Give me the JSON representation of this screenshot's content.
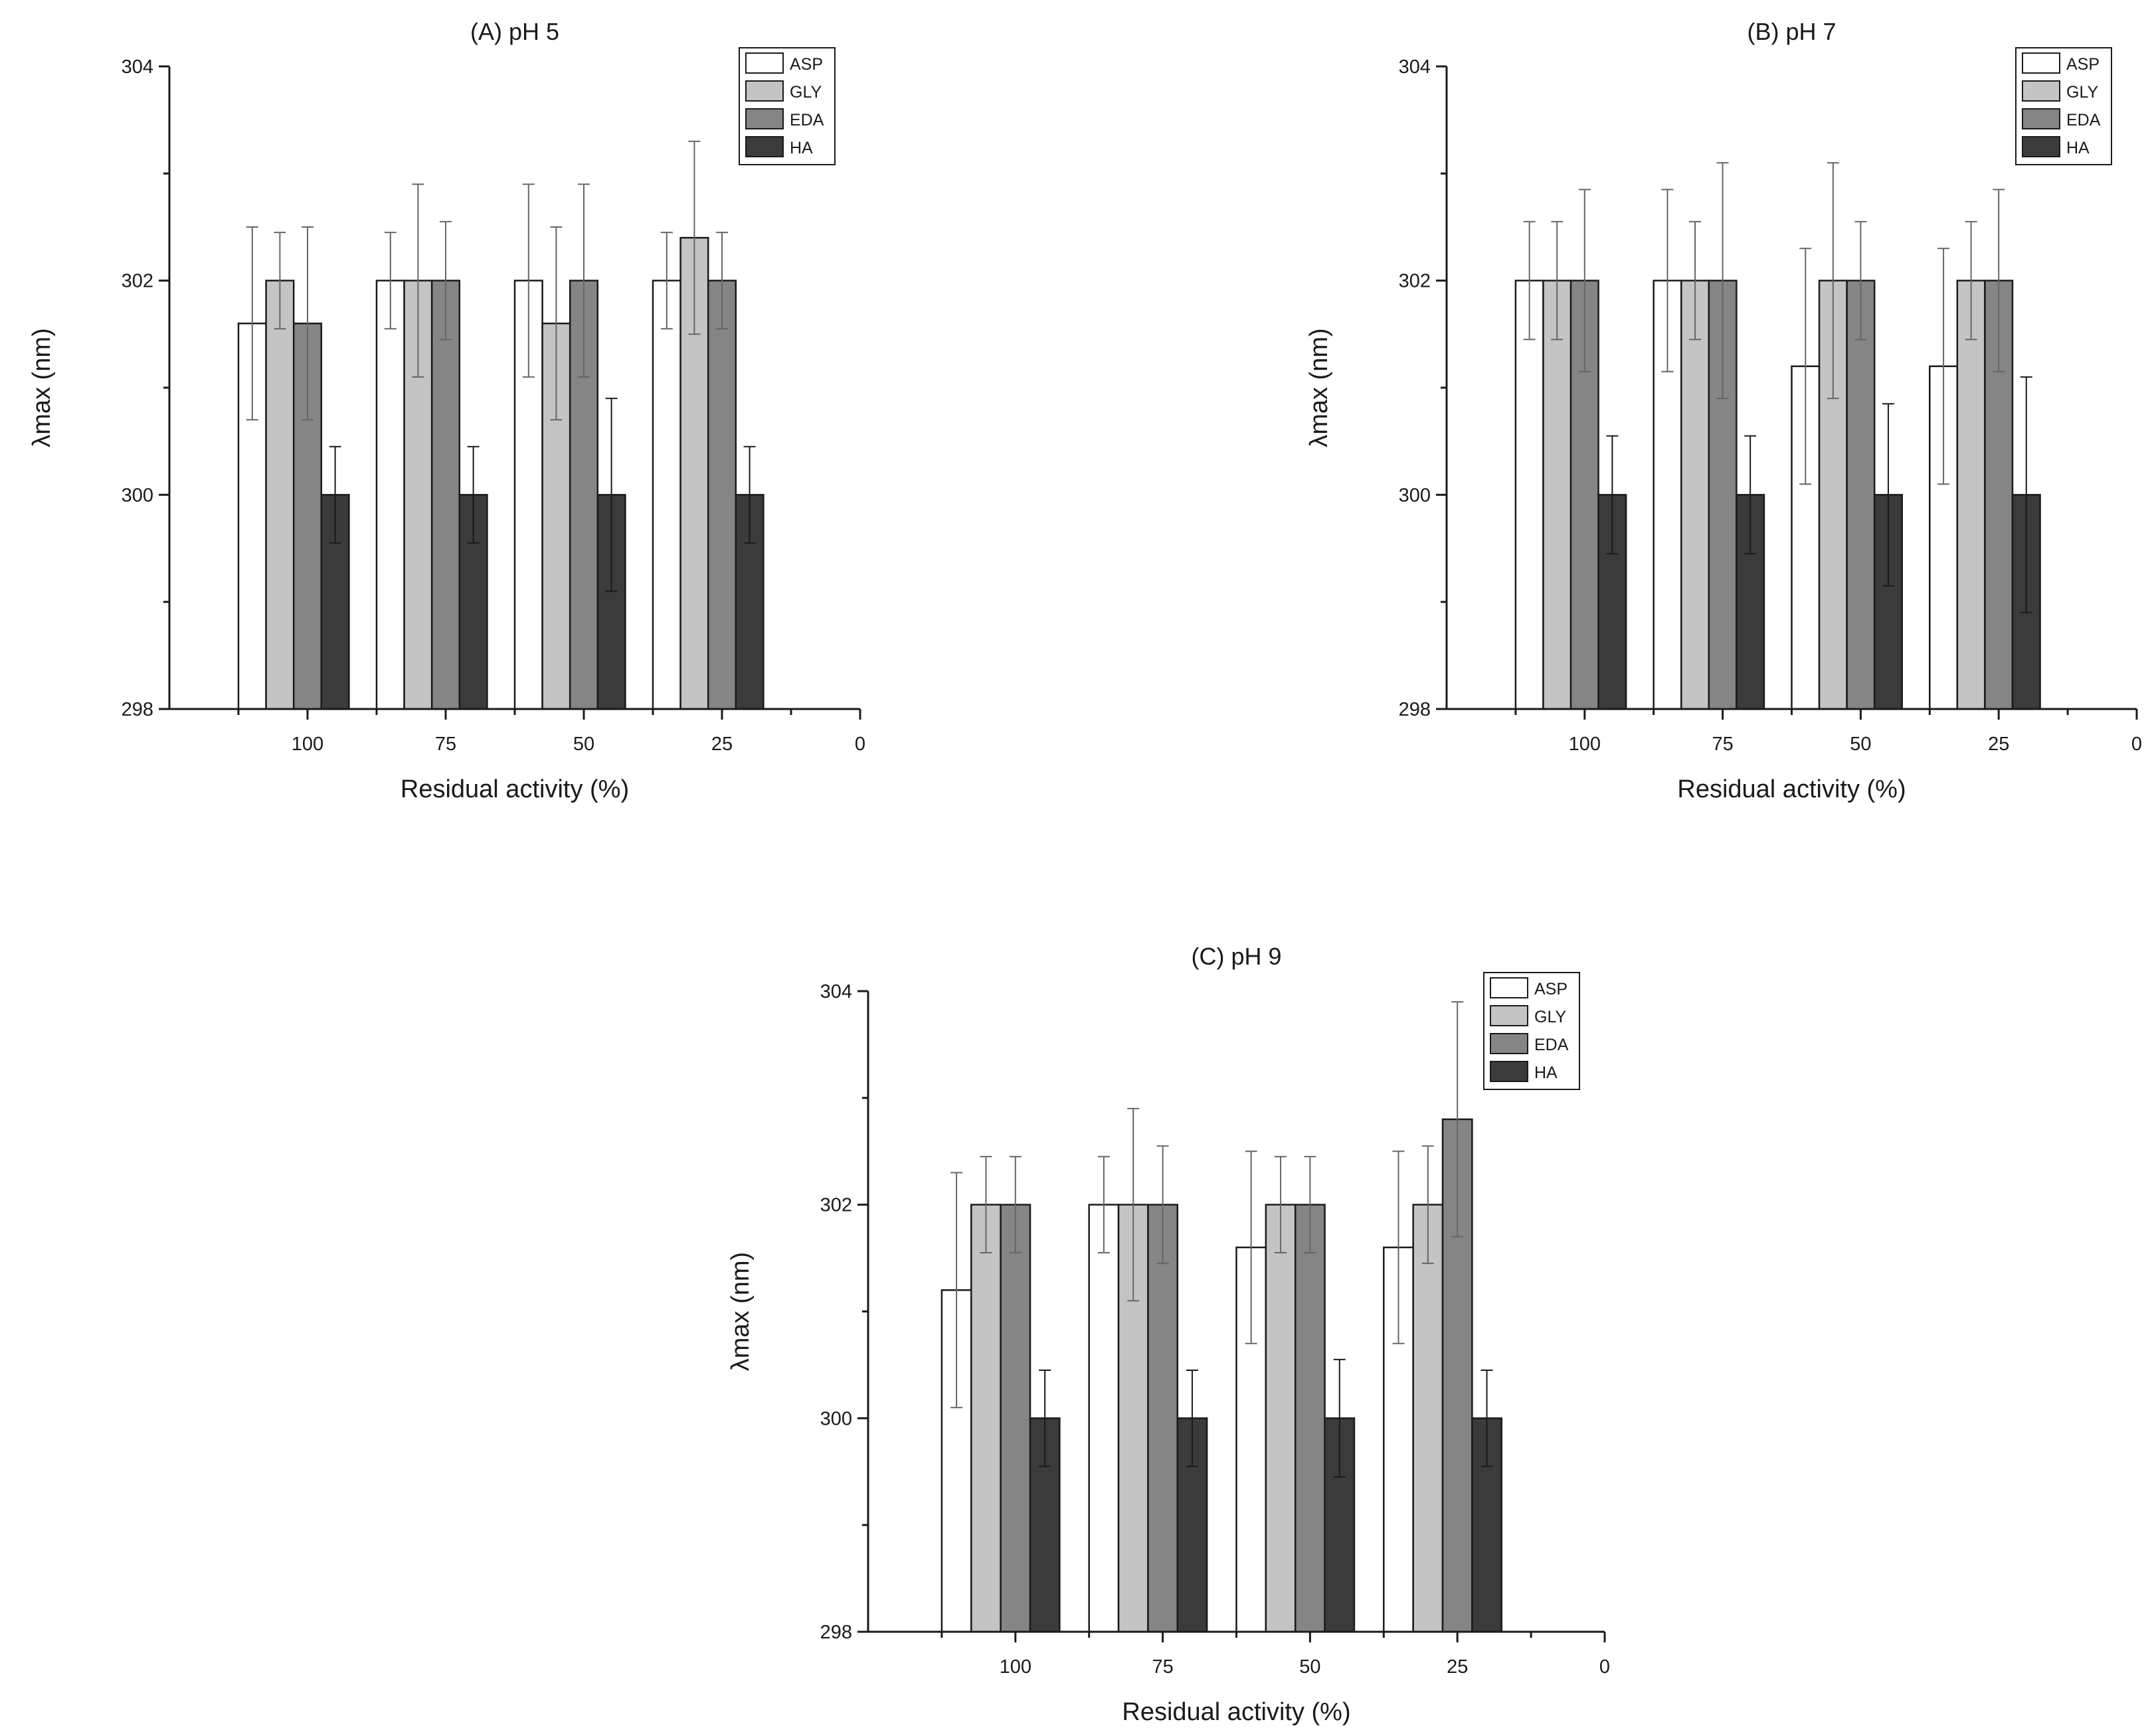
{
  "chart_data": [
    {
      "panel": "A",
      "type": "bar",
      "title": "(A) pH 5",
      "xlabel": "Residual activity (%)",
      "ylabel": "λmax (nm)",
      "x_ticks": [
        "100",
        "75",
        "50",
        "25",
        "0"
      ],
      "categories": [
        "100",
        "75",
        "50",
        "25"
      ],
      "ylim": [
        298,
        304
      ],
      "y_ticks": [
        "298",
        "300",
        "302",
        "304"
      ],
      "legend_position": "top-right",
      "series": [
        {
          "name": "ASP",
          "color": "#ffffff",
          "values": [
            301.6,
            302.0,
            302.0,
            302.0
          ],
          "errors": [
            0.9,
            0.45,
            0.9,
            0.45
          ]
        },
        {
          "name": "GLY",
          "color": "#c4c4c4",
          "values": [
            302.0,
            302.0,
            301.6,
            302.4
          ],
          "errors": [
            0.45,
            0.9,
            0.9,
            0.9
          ]
        },
        {
          "name": "EDA",
          "color": "#858585",
          "values": [
            301.6,
            302.0,
            302.0,
            302.0
          ],
          "errors": [
            0.9,
            0.55,
            0.9,
            0.45
          ]
        },
        {
          "name": "HA",
          "color": "#3b3b3b",
          "values": [
            300.0,
            300.0,
            300.0,
            300.0
          ],
          "errors": [
            0.45,
            0.45,
            0.9,
            0.45
          ]
        }
      ]
    },
    {
      "panel": "B",
      "type": "bar",
      "title": "(B) pH 7",
      "xlabel": "Residual activity (%)",
      "ylabel": "λmax (nm)",
      "x_ticks": [
        "100",
        "75",
        "50",
        "25",
        "0"
      ],
      "categories": [
        "100",
        "75",
        "50",
        "25"
      ],
      "ylim": [
        298,
        304
      ],
      "y_ticks": [
        "298",
        "300",
        "302",
        "304"
      ],
      "legend_position": "top-right",
      "series": [
        {
          "name": "ASP",
          "color": "#ffffff",
          "values": [
            302.0,
            302.0,
            301.2,
            301.2
          ],
          "errors": [
            0.55,
            0.85,
            1.1,
            1.1
          ]
        },
        {
          "name": "GLY",
          "color": "#c4c4c4",
          "values": [
            302.0,
            302.0,
            302.0,
            302.0
          ],
          "errors": [
            0.55,
            0.55,
            1.1,
            0.55
          ]
        },
        {
          "name": "EDA",
          "color": "#858585",
          "values": [
            302.0,
            302.0,
            302.0,
            302.0
          ],
          "errors": [
            0.85,
            1.1,
            0.55,
            0.85
          ]
        },
        {
          "name": "HA",
          "color": "#3b3b3b",
          "values": [
            300.0,
            300.0,
            300.0,
            300.0
          ],
          "errors": [
            0.55,
            0.55,
            0.85,
            1.1
          ]
        }
      ]
    },
    {
      "panel": "C",
      "type": "bar",
      "title": "(C) pH 9",
      "xlabel": "Residual activity (%)",
      "ylabel": "λmax (nm)",
      "x_ticks": [
        "100",
        "75",
        "50",
        "25",
        "0"
      ],
      "categories": [
        "100",
        "75",
        "50",
        "25"
      ],
      "ylim": [
        298,
        304
      ],
      "y_ticks": [
        "298",
        "300",
        "302",
        "304"
      ],
      "legend_position": "top-right",
      "series": [
        {
          "name": "ASP",
          "color": "#ffffff",
          "values": [
            301.2,
            302.0,
            301.6,
            301.6
          ],
          "errors": [
            1.1,
            0.45,
            0.9,
            0.9
          ]
        },
        {
          "name": "GLY",
          "color": "#c4c4c4",
          "values": [
            302.0,
            302.0,
            302.0,
            302.0
          ],
          "errors": [
            0.45,
            0.9,
            0.45,
            0.55
          ]
        },
        {
          "name": "EDA",
          "color": "#858585",
          "values": [
            302.0,
            302.0,
            302.0,
            302.8
          ],
          "errors": [
            0.45,
            0.55,
            0.45,
            1.1
          ]
        },
        {
          "name": "HA",
          "color": "#3b3b3b",
          "values": [
            300.0,
            300.0,
            300.0,
            300.0
          ],
          "errors": [
            0.45,
            0.45,
            0.55,
            0.45
          ]
        }
      ]
    }
  ]
}
